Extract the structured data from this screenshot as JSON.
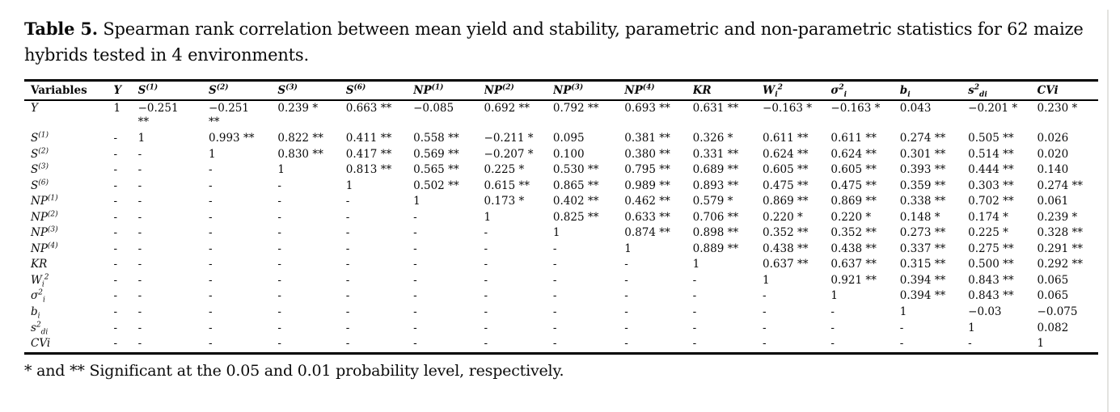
{
  "page": {
    "title_bold": "Table 5.",
    "title_rest": " Spearman rank correlation between mean yield and stability, parametric and non-parametric statistics for 62 maize hybrids tested in 4 environments.",
    "footnote": "* and ** Significant at the 0.05 and 0.01 probability level, respectively."
  },
  "chart_data": {
    "type": "table",
    "title": "Table 5. Spearman rank correlation between mean yield and stability, parametric and non-parametric statistics for 62 maize hybrids tested in 4 environments."
  },
  "table": {
    "header": [
      [
        {
          "t": "Variables"
        }
      ],
      [
        {
          "t": "Y"
        }
      ],
      [
        {
          "t": "S"
        },
        {
          "t": "(1)",
          "s": "sup"
        }
      ],
      [
        {
          "t": "S"
        },
        {
          "t": "(2)",
          "s": "sup"
        }
      ],
      [
        {
          "t": "S"
        },
        {
          "t": "(3)",
          "s": "sup"
        }
      ],
      [
        {
          "t": "S"
        },
        {
          "t": "(6)",
          "s": "sup"
        }
      ],
      [
        {
          "t": "NP"
        },
        {
          "t": "(1)",
          "s": "sup"
        }
      ],
      [
        {
          "t": "NP"
        },
        {
          "t": "(2)",
          "s": "sup"
        }
      ],
      [
        {
          "t": "NP"
        },
        {
          "t": "(3)",
          "s": "sup"
        }
      ],
      [
        {
          "t": "NP"
        },
        {
          "t": "(4)",
          "s": "sup"
        }
      ],
      [
        {
          "t": "KR"
        }
      ],
      [
        {
          "t": "W"
        },
        {
          "t": "i",
          "s": "sub"
        },
        {
          "t": "2",
          "s": "sup"
        }
      ],
      [
        {
          "t": "σ"
        },
        {
          "t": "2",
          "s": "sup"
        },
        {
          "t": "i",
          "s": "sub"
        }
      ],
      [
        {
          "t": "b"
        },
        {
          "t": "i",
          "s": "sub"
        }
      ],
      [
        {
          "t": "s"
        },
        {
          "t": "2",
          "s": "sup"
        },
        {
          "t": "di",
          "s": "sub"
        }
      ],
      [
        {
          "t": "CVi"
        }
      ]
    ],
    "rows": [
      {
        "label": [
          {
            "t": "Y"
          }
        ],
        "cells": [
          "1",
          "−0.251\n**",
          "−0.251\n**",
          "0.239 *",
          "0.663 **",
          "−0.085",
          "0.692 **",
          "0.792 **",
          "0.693 **",
          "0.631 **",
          "−0.163 *",
          "−0.163 *",
          "0.043",
          "−0.201 *",
          "0.230 *"
        ]
      },
      {
        "label": [
          {
            "t": "S"
          },
          {
            "t": "(1)",
            "s": "sup"
          }
        ],
        "cells": [
          "-",
          "1",
          "0.993 **",
          "0.822 **",
          "0.411 **",
          "0.558 **",
          "−0.211 *",
          "0.095",
          "0.381 **",
          "0.326 *",
          "0.611 **",
          "0.611 **",
          "0.274 **",
          "0.505 **",
          "0.026"
        ]
      },
      {
        "label": [
          {
            "t": "S"
          },
          {
            "t": "(2)",
            "s": "sup"
          }
        ],
        "cells": [
          "-",
          "-",
          "1",
          "0.830 **",
          "0.417 **",
          "0.569 **",
          "−0.207 *",
          "0.100",
          "0.380 **",
          "0.331 **",
          "0.624 **",
          "0.624 **",
          "0.301 **",
          "0.514 **",
          "0.020"
        ]
      },
      {
        "label": [
          {
            "t": "S"
          },
          {
            "t": "(3)",
            "s": "sup"
          }
        ],
        "cells": [
          "-",
          "-",
          "-",
          "1",
          "0.813 **",
          "0.565 **",
          "0.225 *",
          "0.530 **",
          "0.795 **",
          "0.689 **",
          "0.605 **",
          "0.605 **",
          "0.393 **",
          "0.444 **",
          "0.140"
        ]
      },
      {
        "label": [
          {
            "t": "S"
          },
          {
            "t": "(6)",
            "s": "sup"
          }
        ],
        "cells": [
          "-",
          "-",
          "-",
          "-",
          "1",
          "0.502 **",
          "0.615 **",
          "0.865 **",
          "0.989 **",
          "0.893 **",
          "0.475 **",
          "0.475 **",
          "0.359 **",
          "0.303 **",
          "0.274 **"
        ]
      },
      {
        "label": [
          {
            "t": "NP"
          },
          {
            "t": "(1)",
            "s": "sup"
          }
        ],
        "cells": [
          "-",
          "-",
          "-",
          "-",
          "-",
          "1",
          "0.173 *",
          "0.402 **",
          "0.462 **",
          "0.579 *",
          "0.869 **",
          "0.869 **",
          "0.338 **",
          "0.702 **",
          "0.061"
        ]
      },
      {
        "label": [
          {
            "t": "NP"
          },
          {
            "t": "(2)",
            "s": "sup"
          }
        ],
        "cells": [
          "-",
          "-",
          "-",
          "-",
          "-",
          "-",
          "1",
          "0.825 **",
          "0.633 **",
          "0.706 **",
          "0.220 *",
          "0.220 *",
          "0.148 *",
          "0.174 *",
          "0.239 *"
        ]
      },
      {
        "label": [
          {
            "t": "NP"
          },
          {
            "t": "(3)",
            "s": "sup"
          }
        ],
        "cells": [
          "-",
          "-",
          "-",
          "-",
          "-",
          "-",
          "-",
          "1",
          "0.874 **",
          "0.898 **",
          "0.352 **",
          "0.352 **",
          "0.273 **",
          "0.225 *",
          "0.328 **"
        ]
      },
      {
        "label": [
          {
            "t": "NP"
          },
          {
            "t": "(4)",
            "s": "sup"
          }
        ],
        "cells": [
          "-",
          "-",
          "-",
          "-",
          "-",
          "-",
          "-",
          "-",
          "1",
          "0.889 **",
          "0.438 **",
          "0.438 **",
          "0.337 **",
          "0.275 **",
          "0.291 **"
        ]
      },
      {
        "label": [
          {
            "t": "KR"
          }
        ],
        "cells": [
          "-",
          "-",
          "-",
          "-",
          "-",
          "-",
          "-",
          "-",
          "-",
          "1",
          "0.637 **",
          "0.637 **",
          "0.315 **",
          "0.500 **",
          "0.292 **"
        ]
      },
      {
        "label": [
          {
            "t": "W"
          },
          {
            "t": "i",
            "s": "sub"
          },
          {
            "t": "2",
            "s": "sup"
          }
        ],
        "cells": [
          "-",
          "-",
          "-",
          "-",
          "-",
          "-",
          "-",
          "-",
          "-",
          "-",
          "1",
          "0.921 **",
          "0.394 **",
          "0.843 **",
          "0.065"
        ]
      },
      {
        "label": [
          {
            "t": "σ"
          },
          {
            "t": "2",
            "s": "sup"
          },
          {
            "t": "i",
            "s": "sub"
          }
        ],
        "cells": [
          "-",
          "-",
          "-",
          "-",
          "-",
          "-",
          "-",
          "-",
          "-",
          "-",
          "-",
          "1",
          "0.394 **",
          "0.843 **",
          "0.065"
        ]
      },
      {
        "label": [
          {
            "t": "b"
          },
          {
            "t": "i",
            "s": "sub"
          }
        ],
        "cells": [
          "-",
          "-",
          "-",
          "-",
          "-",
          "-",
          "-",
          "-",
          "-",
          "-",
          "-",
          "-",
          "1",
          "−0.03",
          "−0.075"
        ]
      },
      {
        "label": [
          {
            "t": "s"
          },
          {
            "t": "2",
            "s": "sup"
          },
          {
            "t": "di",
            "s": "sub"
          }
        ],
        "cells": [
          "-",
          "-",
          "-",
          "-",
          "-",
          "-",
          "-",
          "-",
          "-",
          "-",
          "-",
          "-",
          "-",
          "1",
          "0.082"
        ]
      },
      {
        "label": [
          {
            "t": "CVi"
          }
        ],
        "cells": [
          "-",
          "-",
          "-",
          "-",
          "-",
          "-",
          "-",
          "-",
          "-",
          "-",
          "-",
          "-",
          "-",
          "-",
          "1"
        ]
      }
    ]
  }
}
